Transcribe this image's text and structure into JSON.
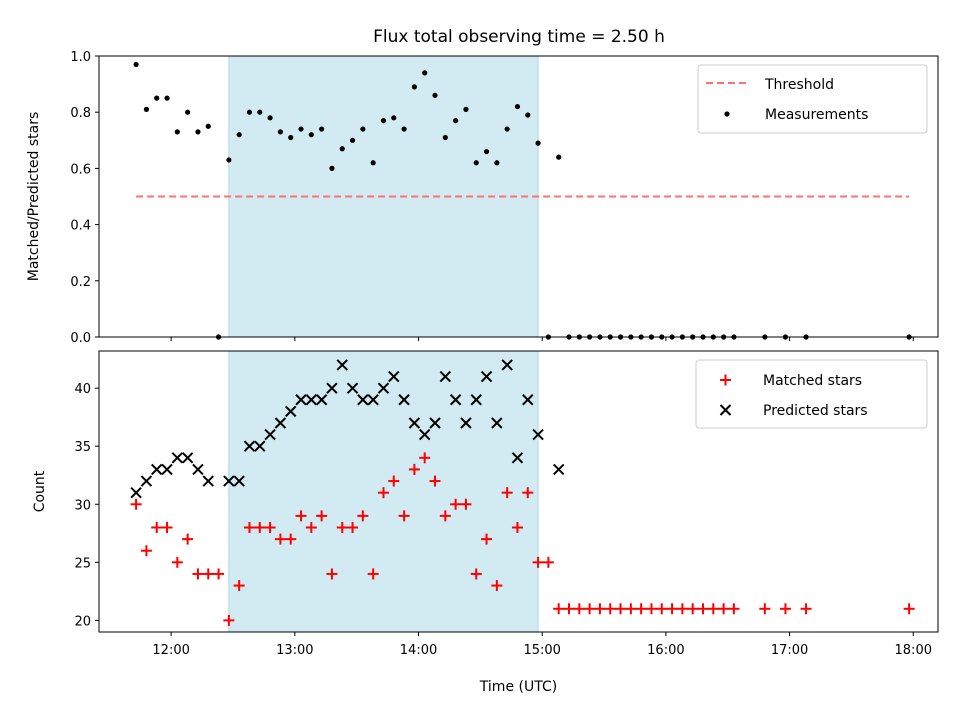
{
  "title": "Flux total observing time = 2.50 h",
  "colors": {
    "threshold": "#ff7070",
    "measurement": "#000000",
    "matched": "#ff0000",
    "predicted": "#000000",
    "span": "#add8e6"
  },
  "chart_data": [
    {
      "type": "scatter",
      "panel": "top",
      "ylabel": "Matched/Predicted stars",
      "ylim": [
        0,
        1.0
      ],
      "yticks": [
        "0.0",
        "0.2",
        "0.4",
        "0.6",
        "0.8",
        "1.0"
      ],
      "ytick_values": [
        0,
        0.2,
        0.4,
        0.6,
        0.8,
        1.0
      ],
      "xlim": [
        "11:25",
        "18:12"
      ],
      "shaded_span": [
        "12:28",
        "14:58"
      ],
      "legend": {
        "placement": "top-right",
        "entries": [
          "Threshold",
          "Measurements"
        ]
      },
      "threshold": {
        "name": "Threshold",
        "value": 0.5,
        "x_range": [
          "11:43",
          "17:58"
        ]
      },
      "series": [
        {
          "name": "Measurements",
          "points": [
            [
              "11:43",
              0.97
            ],
            [
              "11:48",
              0.81
            ],
            [
              "11:53",
              0.85
            ],
            [
              "11:58",
              0.85
            ],
            [
              "12:03",
              0.73
            ],
            [
              "12:08",
              0.8
            ],
            [
              "12:13",
              0.73
            ],
            [
              "12:18",
              0.75
            ],
            [
              "12:23",
              0.0
            ],
            [
              "12:28",
              0.63
            ],
            [
              "12:33",
              0.72
            ],
            [
              "12:38",
              0.8
            ],
            [
              "12:43",
              0.8
            ],
            [
              "12:48",
              0.78
            ],
            [
              "12:53",
              0.73
            ],
            [
              "12:58",
              0.71
            ],
            [
              "13:03",
              0.74
            ],
            [
              "13:08",
              0.72
            ],
            [
              "13:13",
              0.74
            ],
            [
              "13:18",
              0.6
            ],
            [
              "13:23",
              0.67
            ],
            [
              "13:28",
              0.7
            ],
            [
              "13:33",
              0.74
            ],
            [
              "13:38",
              0.62
            ],
            [
              "13:43",
              0.77
            ],
            [
              "13:48",
              0.78
            ],
            [
              "13:53",
              0.74
            ],
            [
              "13:58",
              0.89
            ],
            [
              "14:03",
              0.94
            ],
            [
              "14:08",
              0.86
            ],
            [
              "14:13",
              0.71
            ],
            [
              "14:18",
              0.77
            ],
            [
              "14:23",
              0.81
            ],
            [
              "14:28",
              0.62
            ],
            [
              "14:33",
              0.66
            ],
            [
              "14:38",
              0.62
            ],
            [
              "14:43",
              0.74
            ],
            [
              "14:48",
              0.82
            ],
            [
              "14:53",
              0.79
            ],
            [
              "14:58",
              0.69
            ],
            [
              "15:03",
              0.0
            ],
            [
              "15:08",
              0.64
            ],
            [
              "15:13",
              0.0
            ],
            [
              "15:18",
              0.0
            ],
            [
              "15:23",
              0.0
            ],
            [
              "15:28",
              0.0
            ],
            [
              "15:33",
              0.0
            ],
            [
              "15:38",
              0.0
            ],
            [
              "15:43",
              0.0
            ],
            [
              "15:48",
              0.0
            ],
            [
              "15:53",
              0.0
            ],
            [
              "15:58",
              0.0
            ],
            [
              "16:03",
              0.0
            ],
            [
              "16:08",
              0.0
            ],
            [
              "16:13",
              0.0
            ],
            [
              "16:18",
              0.0
            ],
            [
              "16:23",
              0.0
            ],
            [
              "16:28",
              0.0
            ],
            [
              "16:33",
              0.0
            ],
            [
              "16:48",
              0.0
            ],
            [
              "16:58",
              0.0
            ],
            [
              "17:08",
              0.0
            ],
            [
              "17:58",
              0.0
            ]
          ]
        }
      ]
    },
    {
      "type": "scatter",
      "panel": "bottom",
      "xlabel": "Time (UTC)",
      "ylabel": "Count",
      "ylim": [
        19,
        43.2
      ],
      "yticks": [
        "20",
        "25",
        "30",
        "35",
        "40"
      ],
      "ytick_values": [
        20,
        25,
        30,
        35,
        40
      ],
      "xlim": [
        "11:25",
        "18:12"
      ],
      "xticks": [
        "12:00",
        "13:00",
        "14:00",
        "15:00",
        "16:00",
        "17:00",
        "18:00"
      ],
      "shaded_span": [
        "12:28",
        "14:58"
      ],
      "legend": {
        "placement": "top-right",
        "entries": [
          "Matched stars",
          "Predicted stars"
        ]
      },
      "series": [
        {
          "name": "Matched stars",
          "points": [
            [
              "11:43",
              30
            ],
            [
              "11:48",
              26
            ],
            [
              "11:53",
              28
            ],
            [
              "11:58",
              28
            ],
            [
              "12:03",
              25
            ],
            [
              "12:08",
              27
            ],
            [
              "12:13",
              24
            ],
            [
              "12:18",
              24
            ],
            [
              "12:23",
              24
            ],
            [
              "12:28",
              20
            ],
            [
              "12:33",
              23
            ],
            [
              "12:38",
              28
            ],
            [
              "12:43",
              28
            ],
            [
              "12:48",
              28
            ],
            [
              "12:53",
              27
            ],
            [
              "12:58",
              27
            ],
            [
              "13:03",
              29
            ],
            [
              "13:08",
              28
            ],
            [
              "13:13",
              29
            ],
            [
              "13:18",
              24
            ],
            [
              "13:23",
              28
            ],
            [
              "13:28",
              28
            ],
            [
              "13:33",
              29
            ],
            [
              "13:38",
              24
            ],
            [
              "13:43",
              31
            ],
            [
              "13:48",
              32
            ],
            [
              "13:53",
              29
            ],
            [
              "13:58",
              33
            ],
            [
              "14:03",
              34
            ],
            [
              "14:08",
              32
            ],
            [
              "14:13",
              29
            ],
            [
              "14:18",
              30
            ],
            [
              "14:23",
              30
            ],
            [
              "14:28",
              24
            ],
            [
              "14:33",
              27
            ],
            [
              "14:38",
              23
            ],
            [
              "14:43",
              31
            ],
            [
              "14:48",
              28
            ],
            [
              "14:53",
              31
            ],
            [
              "14:58",
              25
            ],
            [
              "15:03",
              25
            ],
            [
              "15:08",
              21
            ],
            [
              "15:13",
              21
            ],
            [
              "15:18",
              21
            ],
            [
              "15:23",
              21
            ],
            [
              "15:28",
              21
            ],
            [
              "15:33",
              21
            ],
            [
              "15:38",
              21
            ],
            [
              "15:43",
              21
            ],
            [
              "15:48",
              21
            ],
            [
              "15:53",
              21
            ],
            [
              "15:58",
              21
            ],
            [
              "16:03",
              21
            ],
            [
              "16:08",
              21
            ],
            [
              "16:13",
              21
            ],
            [
              "16:18",
              21
            ],
            [
              "16:23",
              21
            ],
            [
              "16:28",
              21
            ],
            [
              "16:33",
              21
            ],
            [
              "16:48",
              21
            ],
            [
              "16:58",
              21
            ],
            [
              "17:08",
              21
            ],
            [
              "17:58",
              21
            ]
          ]
        },
        {
          "name": "Predicted stars",
          "points": [
            [
              "11:43",
              31
            ],
            [
              "11:48",
              32
            ],
            [
              "11:53",
              33
            ],
            [
              "11:58",
              33
            ],
            [
              "12:03",
              34
            ],
            [
              "12:08",
              34
            ],
            [
              "12:13",
              33
            ],
            [
              "12:18",
              32
            ],
            [
              "12:28",
              32
            ],
            [
              "12:33",
              32
            ],
            [
              "12:38",
              35
            ],
            [
              "12:43",
              35
            ],
            [
              "12:48",
              36
            ],
            [
              "12:53",
              37
            ],
            [
              "12:58",
              38
            ],
            [
              "13:03",
              39
            ],
            [
              "13:08",
              39
            ],
            [
              "13:13",
              39
            ],
            [
              "13:18",
              40
            ],
            [
              "13:23",
              42
            ],
            [
              "13:28",
              40
            ],
            [
              "13:33",
              39
            ],
            [
              "13:38",
              39
            ],
            [
              "13:43",
              40
            ],
            [
              "13:48",
              41
            ],
            [
              "13:53",
              39
            ],
            [
              "13:58",
              37
            ],
            [
              "14:03",
              36
            ],
            [
              "14:08",
              37
            ],
            [
              "14:13",
              41
            ],
            [
              "14:18",
              39
            ],
            [
              "14:23",
              37
            ],
            [
              "14:28",
              39
            ],
            [
              "14:33",
              41
            ],
            [
              "14:38",
              37
            ],
            [
              "14:43",
              42
            ],
            [
              "14:48",
              34
            ],
            [
              "14:53",
              39
            ],
            [
              "14:58",
              36
            ],
            [
              "15:08",
              33
            ]
          ]
        }
      ]
    }
  ]
}
